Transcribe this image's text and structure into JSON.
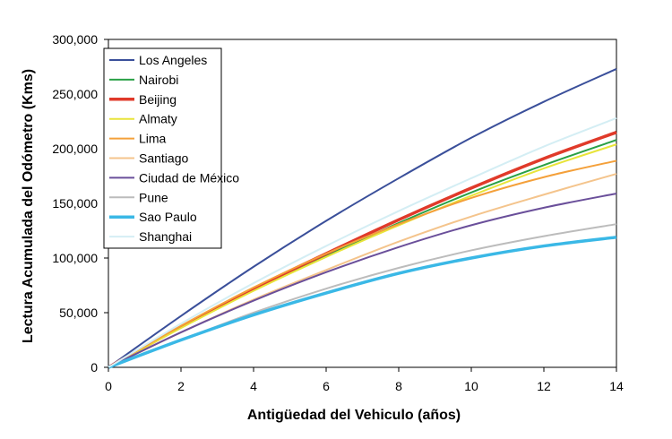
{
  "chart_data": {
    "type": "line",
    "title": "",
    "xlabel": "Antigüedad del Vehiculo (años)",
    "ylabel": "Lectura Acumulada del Odómetro (Kms)",
    "xlim": [
      0,
      14
    ],
    "ylim": [
      0,
      300000
    ],
    "xticks": [
      "0",
      "2",
      "4",
      "6",
      "8",
      "10",
      "12",
      "14"
    ],
    "yticks": [
      "0",
      "50,000",
      "100,000",
      "150,000",
      "200,000",
      "250,000",
      "300,000"
    ],
    "grid": false,
    "legend_position": "top-left",
    "x": [
      0,
      2,
      4,
      6,
      8,
      10,
      12,
      14
    ],
    "series": [
      {
        "name": "Los Angeles",
        "color": "#3a4f9a",
        "values": [
          0,
          47000,
          92000,
          134000,
          173000,
          210000,
          243000,
          273000
        ]
      },
      {
        "name": "Nairobi",
        "color": "#2aa046",
        "values": [
          0,
          37000,
          71000,
          102000,
          132000,
          160000,
          185000,
          208000
        ]
      },
      {
        "name": "Beijing",
        "color": "#e03a2a",
        "values": [
          0,
          37000,
          72000,
          104000,
          135000,
          164000,
          191000,
          215000
        ]
      },
      {
        "name": "Almaty",
        "color": "#e8e43a",
        "values": [
          0,
          36000,
          70000,
          101000,
          130000,
          157000,
          182000,
          204000
        ]
      },
      {
        "name": "Lima",
        "color": "#f4a03a",
        "values": [
          0,
          38000,
          73000,
          104000,
          131000,
          155000,
          174000,
          189000
        ]
      },
      {
        "name": "Santiago",
        "color": "#f4c48c",
        "values": [
          0,
          32000,
          62000,
          89000,
          115000,
          138000,
          158000,
          177000
        ]
      },
      {
        "name": "Ciudad de México",
        "color": "#6a4f9a",
        "values": [
          0,
          32000,
          61000,
          87000,
          110000,
          130000,
          146000,
          159000
        ]
      },
      {
        "name": "Pune",
        "color": "#bcbcbc",
        "values": [
          0,
          25000,
          50000,
          72000,
          91000,
          107000,
          120000,
          131000
        ]
      },
      {
        "name": "Sao Paulo",
        "color": "#3ab8e6",
        "values": [
          0,
          25000,
          48000,
          68000,
          86000,
          100000,
          111000,
          119000
        ]
      },
      {
        "name": "Shanghai",
        "color": "#d4eef4",
        "values": [
          0,
          40000,
          77000,
          111000,
          143000,
          173000,
          202000,
          228000
        ]
      }
    ]
  }
}
